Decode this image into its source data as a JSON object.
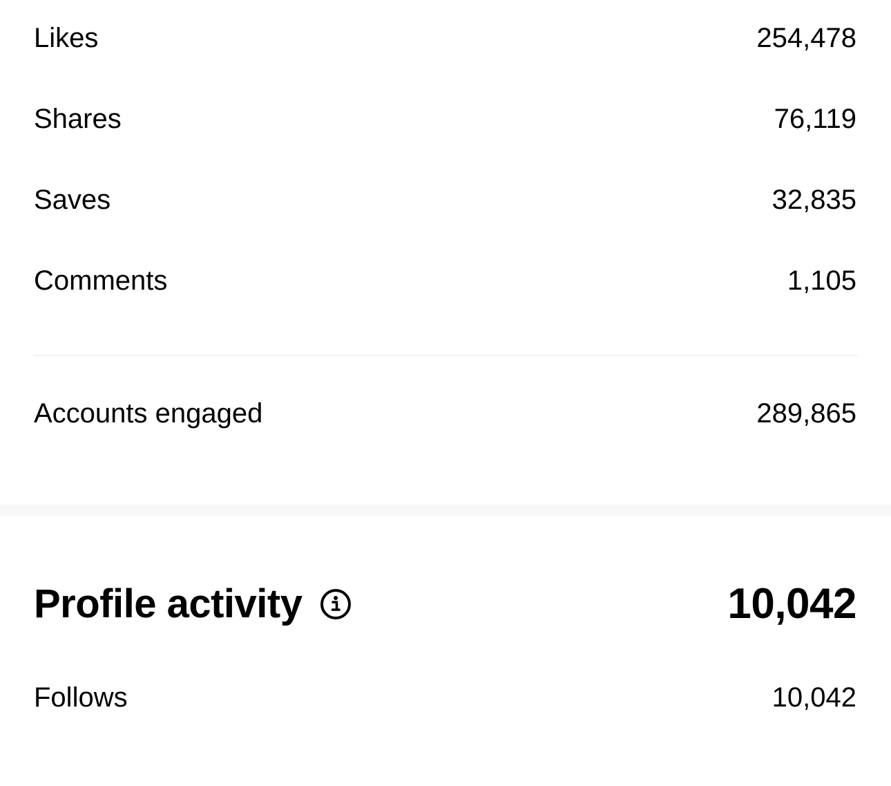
{
  "metrics": [
    {
      "label": "Likes",
      "value": "254,478"
    },
    {
      "label": "Shares",
      "value": "76,119"
    },
    {
      "label": "Saves",
      "value": "32,835"
    },
    {
      "label": "Comments",
      "value": "1,105"
    }
  ],
  "accounts_engaged": {
    "label": "Accounts engaged",
    "value": "289,865"
  },
  "profile_activity": {
    "title": "Profile activity",
    "total": "10,042",
    "icon": "info-icon",
    "items": [
      {
        "label": "Follows",
        "value": "10,042"
      }
    ]
  },
  "colors": {
    "text": "#000000",
    "divider": "#f2f2f2",
    "section_gap": "#f7f7f7",
    "background": "#ffffff"
  }
}
